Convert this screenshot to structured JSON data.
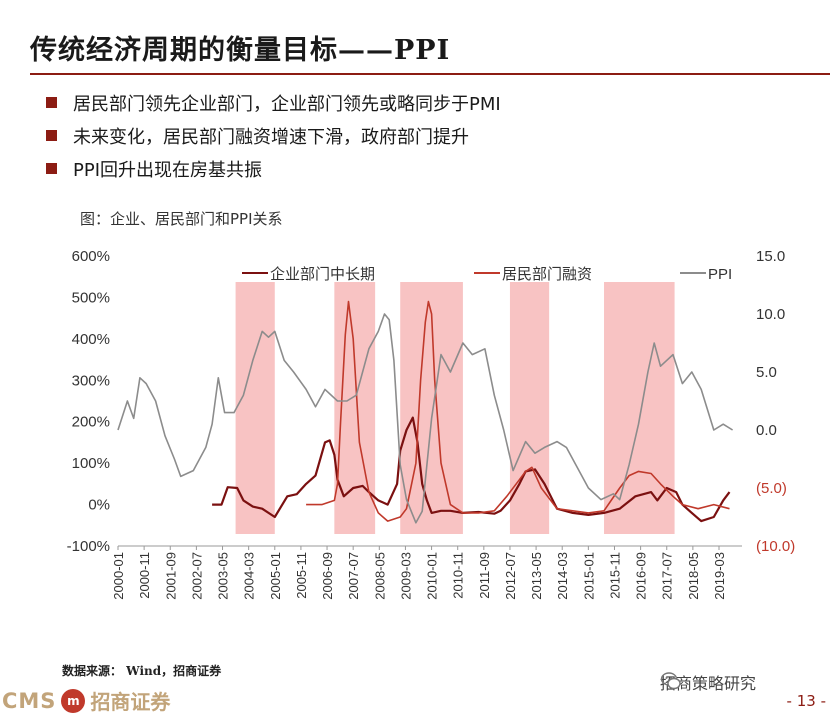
{
  "title": "传统经济周期的衡量目标——PPI",
  "bullets": [
    "居民部门领先企业部门，企业部门领先或略同步于PMI",
    "未来变化，居民部门融资增速下滑，政府部门提升",
    "PPI回升出现在房基共振"
  ],
  "chart_title": "图：企业、居民部门和PPI关系",
  "source": "数据来源： Wind，招商证券",
  "wechat": "招商策略研究",
  "footer": {
    "cms": "CMS",
    "mark": "m",
    "cn": "招商证券",
    "page": "- 13 -"
  },
  "colors": {
    "corp": "#7b1010",
    "res": "#c0392b",
    "ppi": "#8c8c8c",
    "shade": "#f7b9b9",
    "accent": "#8c1c13"
  },
  "chart_data": {
    "type": "line",
    "left_axis": {
      "ylim": [
        -100,
        600
      ],
      "ticks": [
        "600%",
        "500%",
        "400%",
        "300%",
        "200%",
        "100%",
        "0%",
        "-100%"
      ]
    },
    "right_axis": {
      "ylim": [
        -10,
        15
      ],
      "ticks": [
        "15.0",
        "10.0",
        "5.0",
        "0.0",
        "(5.0)",
        "(10.0)"
      ]
    },
    "x_ticks": [
      "2000-01",
      "2000-11",
      "2001-09",
      "2002-07",
      "2003-05",
      "2004-03",
      "2005-01",
      "2005-11",
      "2006-09",
      "2007-07",
      "2008-05",
      "2009-03",
      "2010-01",
      "2010-11",
      "2011-09",
      "2012-07",
      "2013-05",
      "2014-03",
      "2015-01",
      "2015-11",
      "2016-09",
      "2017-07",
      "2018-05",
      "2019-03"
    ],
    "shaded_periods": [
      [
        2003.75,
        2005.0
      ],
      [
        2006.9,
        2008.2
      ],
      [
        2009.0,
        2011.0
      ],
      [
        2012.5,
        2013.75
      ],
      [
        2015.5,
        2017.75
      ]
    ],
    "legend_position": "top",
    "series": [
      {
        "name": "企业部门中长期",
        "axis": "left",
        "x": [
          2003.0,
          2003.3,
          2003.5,
          2003.8,
          2004.0,
          2004.3,
          2004.6,
          2005.0,
          2005.4,
          2005.7,
          2006.0,
          2006.3,
          2006.6,
          2006.75,
          2006.9,
          2007.0,
          2007.2,
          2007.5,
          2007.8,
          2008.0,
          2008.3,
          2008.6,
          2008.9,
          2009.0,
          2009.2,
          2009.4,
          2009.55,
          2009.7,
          2009.85,
          2010.0,
          2010.3,
          2010.6,
          2011.0,
          2011.5,
          2012.0,
          2012.2,
          2012.5,
          2012.8,
          2013.0,
          2013.3,
          2013.6,
          2014.0,
          2014.5,
          2015.0,
          2015.5,
          2016.0,
          2016.5,
          2017.0,
          2017.2,
          2017.5,
          2017.8,
          2018.0,
          2018.3,
          2018.6,
          2019.0,
          2019.3,
          2019.5
        ],
        "values": [
          0,
          0,
          42,
          40,
          10,
          -5,
          -10,
          -30,
          20,
          25,
          50,
          70,
          150,
          155,
          120,
          60,
          20,
          40,
          45,
          30,
          10,
          0,
          50,
          130,
          180,
          210,
          150,
          50,
          10,
          -20,
          -15,
          -15,
          -20,
          -18,
          -22,
          -15,
          10,
          50,
          80,
          85,
          50,
          -10,
          -20,
          -25,
          -20,
          -10,
          20,
          30,
          10,
          40,
          30,
          0,
          -20,
          -40,
          -30,
          10,
          30
        ]
      },
      {
        "name": "居民部门融资",
        "axis": "left",
        "x": [
          2006.0,
          2006.5,
          2006.9,
          2007.0,
          2007.1,
          2007.25,
          2007.35,
          2007.5,
          2007.7,
          2008.0,
          2008.3,
          2008.6,
          2009.0,
          2009.2,
          2009.5,
          2009.65,
          2009.8,
          2009.9,
          2010.0,
          2010.1,
          2010.3,
          2010.6,
          2011.0,
          2011.5,
          2012.0,
          2012.4,
          2012.8,
          2013.0,
          2013.2,
          2013.5,
          2014.0,
          2014.5,
          2015.0,
          2015.5,
          2016.0,
          2016.3,
          2016.6,
          2017.0,
          2017.3,
          2017.7,
          2018.0,
          2018.5,
          2019.0,
          2019.5
        ],
        "values": [
          0,
          0,
          10,
          50,
          200,
          410,
          490,
          400,
          150,
          30,
          -20,
          -40,
          -30,
          -10,
          100,
          300,
          440,
          490,
          460,
          300,
          100,
          0,
          -20,
          -20,
          -15,
          20,
          60,
          80,
          90,
          40,
          -10,
          -15,
          -20,
          -15,
          40,
          70,
          80,
          75,
          50,
          20,
          0,
          -10,
          0,
          -10
        ]
      },
      {
        "name": "PPI",
        "axis": "right",
        "x": [
          2000.0,
          2000.3,
          2000.5,
          2000.7,
          2000.9,
          2001.2,
          2001.5,
          2001.8,
          2002.0,
          2002.4,
          2002.8,
          2003.0,
          2003.2,
          2003.4,
          2003.7,
          2004.0,
          2004.3,
          2004.6,
          2004.8,
          2005.0,
          2005.3,
          2005.6,
          2006.0,
          2006.3,
          2006.6,
          2007.0,
          2007.3,
          2007.6,
          2008.0,
          2008.3,
          2008.5,
          2008.65,
          2008.8,
          2009.0,
          2009.2,
          2009.5,
          2009.7,
          2010.0,
          2010.3,
          2010.6,
          2011.0,
          2011.3,
          2011.7,
          2012.0,
          2012.3,
          2012.6,
          2013.0,
          2013.3,
          2013.6,
          2014.0,
          2014.3,
          2014.6,
          2015.0,
          2015.4,
          2015.8,
          2016.0,
          2016.3,
          2016.6,
          2016.9,
          2017.1,
          2017.3,
          2017.5,
          2017.7,
          2018.0,
          2018.3,
          2018.6,
          2019.0,
          2019.3,
          2019.6
        ],
        "values": [
          0,
          2.5,
          1.0,
          4.5,
          4.0,
          2.5,
          -0.5,
          -2.5,
          -4.0,
          -3.5,
          -1.5,
          0.5,
          4.5,
          1.5,
          1.5,
          3.0,
          6.0,
          8.5,
          8.0,
          8.5,
          6.0,
          5.0,
          3.5,
          2.0,
          3.5,
          2.5,
          2.5,
          3.0,
          7.0,
          8.5,
          10.0,
          9.5,
          6.0,
          -3.0,
          -6.0,
          -8.0,
          -7.0,
          1.0,
          6.5,
          5.0,
          7.5,
          6.5,
          7.0,
          3.0,
          0.0,
          -3.5,
          -1.0,
          -2.0,
          -1.5,
          -1.0,
          -1.5,
          -3.0,
          -5.0,
          -6.0,
          -5.5,
          -6.0,
          -3.0,
          0.5,
          5.0,
          7.5,
          5.5,
          6.0,
          6.5,
          4.0,
          5.0,
          3.5,
          0.0,
          0.5,
          0.0
        ]
      }
    ]
  }
}
